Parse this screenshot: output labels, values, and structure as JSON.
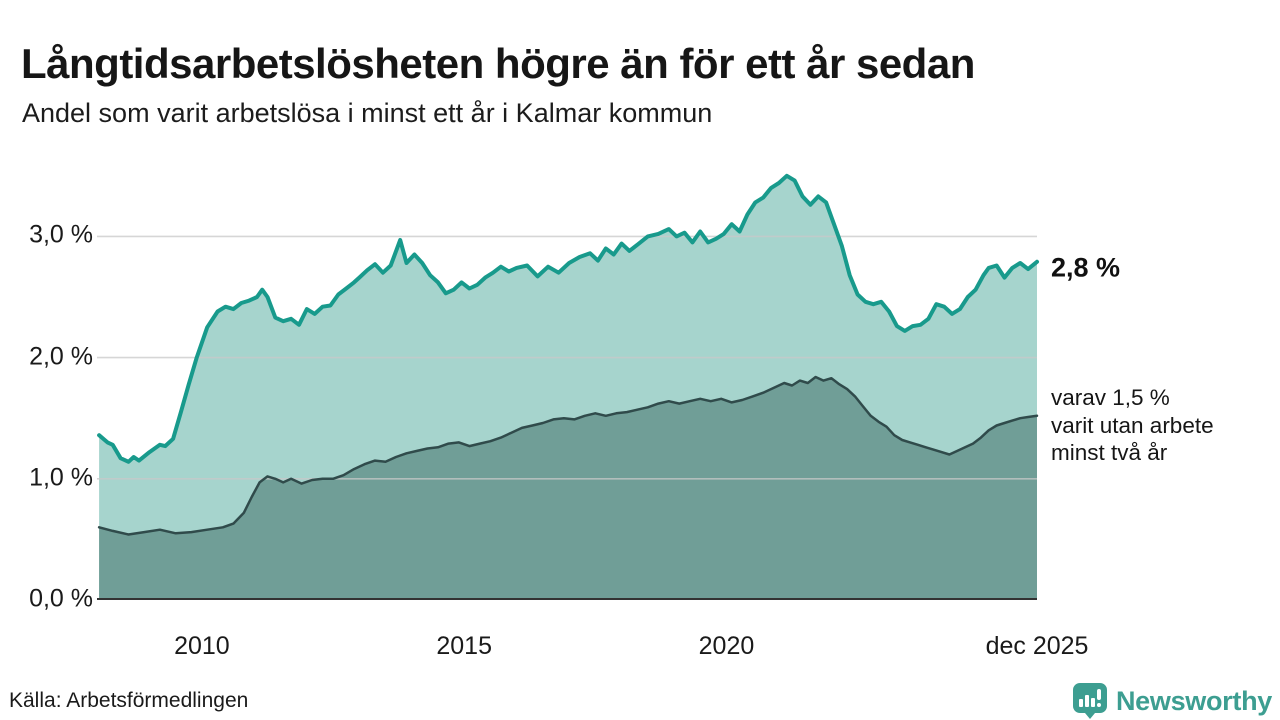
{
  "header": {
    "title": "Långtidsarbetslösheten högre än för ett år sedan",
    "subtitle": "Andel som varit arbetslösa i minst ett år i Kalmar kommun"
  },
  "chart_data": {
    "type": "area",
    "title": "Långtidsarbetslösheten högre än för ett år sedan",
    "subtitle": "Andel som varit arbetslösa i minst ett år i Kalmar kommun",
    "xlabel": "",
    "ylabel": "",
    "grid": true,
    "legend_position": "annotations-right",
    "x_domain": [
      2008.0,
      2025.92
    ],
    "ylim": [
      0,
      3.63
    ],
    "y_ticks": [
      {
        "value": 0,
        "label": "0,0 %"
      },
      {
        "value": 1,
        "label": "1,0 %"
      },
      {
        "value": 2,
        "label": "2,0 %"
      },
      {
        "value": 3,
        "label": "3,0 %"
      }
    ],
    "x_ticks": [
      {
        "value": 2010,
        "label": "2010"
      },
      {
        "value": 2015,
        "label": "2015"
      },
      {
        "value": 2020,
        "label": "2020"
      },
      {
        "value": 2025.92,
        "label": "dec 2025"
      }
    ],
    "colors": {
      "grid": "#c8c8c8",
      "axis": "#333333",
      "accent_teal": "#189a8c",
      "brand_teal": "#3d9e91"
    },
    "series": [
      {
        "id": "unemployed-one-year",
        "name": "arbetslösa minst ett år",
        "color": "#189a8c",
        "fill": "#a6d4cd",
        "width": 4,
        "points": [
          [
            2008.04,
            1.36
          ],
          [
            2008.2,
            1.3
          ],
          [
            2008.3,
            1.28
          ],
          [
            2008.45,
            1.17
          ],
          [
            2008.6,
            1.14
          ],
          [
            2008.7,
            1.18
          ],
          [
            2008.8,
            1.15
          ],
          [
            2009.0,
            1.22
          ],
          [
            2009.2,
            1.28
          ],
          [
            2009.3,
            1.27
          ],
          [
            2009.45,
            1.33
          ],
          [
            2009.6,
            1.55
          ],
          [
            2009.75,
            1.78
          ],
          [
            2009.9,
            2.0
          ],
          [
            2010.1,
            2.25
          ],
          [
            2010.3,
            2.38
          ],
          [
            2010.45,
            2.42
          ],
          [
            2010.6,
            2.4
          ],
          [
            2010.75,
            2.45
          ],
          [
            2010.9,
            2.47
          ],
          [
            2011.05,
            2.5
          ],
          [
            2011.15,
            2.56
          ],
          [
            2011.25,
            2.5
          ],
          [
            2011.4,
            2.33
          ],
          [
            2011.55,
            2.3
          ],
          [
            2011.7,
            2.32
          ],
          [
            2011.85,
            2.27
          ],
          [
            2012.0,
            2.4
          ],
          [
            2012.15,
            2.36
          ],
          [
            2012.3,
            2.42
          ],
          [
            2012.45,
            2.43
          ],
          [
            2012.6,
            2.52
          ],
          [
            2012.75,
            2.57
          ],
          [
            2012.9,
            2.62
          ],
          [
            2013.0,
            2.66
          ],
          [
            2013.15,
            2.72
          ],
          [
            2013.3,
            2.77
          ],
          [
            2013.45,
            2.7
          ],
          [
            2013.6,
            2.76
          ],
          [
            2013.78,
            2.97
          ],
          [
            2013.9,
            2.78
          ],
          [
            2014.05,
            2.85
          ],
          [
            2014.2,
            2.78
          ],
          [
            2014.35,
            2.68
          ],
          [
            2014.5,
            2.62
          ],
          [
            2014.65,
            2.53
          ],
          [
            2014.8,
            2.56
          ],
          [
            2014.95,
            2.62
          ],
          [
            2015.1,
            2.57
          ],
          [
            2015.25,
            2.6
          ],
          [
            2015.4,
            2.66
          ],
          [
            2015.55,
            2.7
          ],
          [
            2015.7,
            2.75
          ],
          [
            2015.85,
            2.71
          ],
          [
            2016.0,
            2.74
          ],
          [
            2016.2,
            2.76
          ],
          [
            2016.4,
            2.67
          ],
          [
            2016.6,
            2.75
          ],
          [
            2016.8,
            2.7
          ],
          [
            2017.0,
            2.78
          ],
          [
            2017.2,
            2.83
          ],
          [
            2017.4,
            2.86
          ],
          [
            2017.55,
            2.8
          ],
          [
            2017.7,
            2.9
          ],
          [
            2017.85,
            2.85
          ],
          [
            2018.0,
            2.94
          ],
          [
            2018.15,
            2.88
          ],
          [
            2018.3,
            2.93
          ],
          [
            2018.5,
            3.0
          ],
          [
            2018.7,
            3.02
          ],
          [
            2018.9,
            3.06
          ],
          [
            2019.05,
            3.0
          ],
          [
            2019.2,
            3.03
          ],
          [
            2019.35,
            2.95
          ],
          [
            2019.5,
            3.04
          ],
          [
            2019.65,
            2.95
          ],
          [
            2019.8,
            2.98
          ],
          [
            2019.95,
            3.02
          ],
          [
            2020.1,
            3.1
          ],
          [
            2020.25,
            3.04
          ],
          [
            2020.4,
            3.18
          ],
          [
            2020.55,
            3.28
          ],
          [
            2020.7,
            3.32
          ],
          [
            2020.85,
            3.4
          ],
          [
            2021.0,
            3.44
          ],
          [
            2021.15,
            3.5
          ],
          [
            2021.3,
            3.46
          ],
          [
            2021.45,
            3.33
          ],
          [
            2021.6,
            3.26
          ],
          [
            2021.75,
            3.33
          ],
          [
            2021.9,
            3.28
          ],
          [
            2022.05,
            3.1
          ],
          [
            2022.2,
            2.92
          ],
          [
            2022.35,
            2.68
          ],
          [
            2022.5,
            2.52
          ],
          [
            2022.65,
            2.46
          ],
          [
            2022.8,
            2.44
          ],
          [
            2022.95,
            2.46
          ],
          [
            2023.1,
            2.38
          ],
          [
            2023.25,
            2.26
          ],
          [
            2023.4,
            2.22
          ],
          [
            2023.55,
            2.26
          ],
          [
            2023.7,
            2.27
          ],
          [
            2023.85,
            2.32
          ],
          [
            2024.0,
            2.44
          ],
          [
            2024.15,
            2.42
          ],
          [
            2024.3,
            2.36
          ],
          [
            2024.45,
            2.4
          ],
          [
            2024.6,
            2.5
          ],
          [
            2024.75,
            2.56
          ],
          [
            2024.9,
            2.68
          ],
          [
            2025.0,
            2.74
          ],
          [
            2025.15,
            2.76
          ],
          [
            2025.3,
            2.66
          ],
          [
            2025.45,
            2.74
          ],
          [
            2025.6,
            2.78
          ],
          [
            2025.75,
            2.73
          ],
          [
            2025.92,
            2.79
          ]
        ]
      },
      {
        "id": "unemployed-two-years",
        "name": "varav utan arbete minst två år",
        "color": "#304b4b",
        "fill": "#709e97",
        "width": 2.5,
        "points": [
          [
            2008.04,
            0.6
          ],
          [
            2008.3,
            0.57
          ],
          [
            2008.6,
            0.54
          ],
          [
            2008.9,
            0.56
          ],
          [
            2009.2,
            0.58
          ],
          [
            2009.5,
            0.55
          ],
          [
            2009.8,
            0.56
          ],
          [
            2010.1,
            0.58
          ],
          [
            2010.4,
            0.6
          ],
          [
            2010.6,
            0.63
          ],
          [
            2010.8,
            0.72
          ],
          [
            2010.95,
            0.85
          ],
          [
            2011.1,
            0.97
          ],
          [
            2011.25,
            1.02
          ],
          [
            2011.4,
            1.0
          ],
          [
            2011.55,
            0.97
          ],
          [
            2011.7,
            1.0
          ],
          [
            2011.9,
            0.96
          ],
          [
            2012.1,
            0.99
          ],
          [
            2012.3,
            1.0
          ],
          [
            2012.5,
            1.0
          ],
          [
            2012.7,
            1.03
          ],
          [
            2012.9,
            1.08
          ],
          [
            2013.1,
            1.12
          ],
          [
            2013.3,
            1.15
          ],
          [
            2013.5,
            1.14
          ],
          [
            2013.7,
            1.18
          ],
          [
            2013.9,
            1.21
          ],
          [
            2014.1,
            1.23
          ],
          [
            2014.3,
            1.25
          ],
          [
            2014.5,
            1.26
          ],
          [
            2014.7,
            1.29
          ],
          [
            2014.9,
            1.3
          ],
          [
            2015.1,
            1.27
          ],
          [
            2015.3,
            1.29
          ],
          [
            2015.5,
            1.31
          ],
          [
            2015.7,
            1.34
          ],
          [
            2015.9,
            1.38
          ],
          [
            2016.1,
            1.42
          ],
          [
            2016.3,
            1.44
          ],
          [
            2016.5,
            1.46
          ],
          [
            2016.7,
            1.49
          ],
          [
            2016.9,
            1.5
          ],
          [
            2017.1,
            1.49
          ],
          [
            2017.3,
            1.52
          ],
          [
            2017.5,
            1.54
          ],
          [
            2017.7,
            1.52
          ],
          [
            2017.9,
            1.54
          ],
          [
            2018.1,
            1.55
          ],
          [
            2018.3,
            1.57
          ],
          [
            2018.5,
            1.59
          ],
          [
            2018.7,
            1.62
          ],
          [
            2018.9,
            1.64
          ],
          [
            2019.1,
            1.62
          ],
          [
            2019.3,
            1.64
          ],
          [
            2019.5,
            1.66
          ],
          [
            2019.7,
            1.64
          ],
          [
            2019.9,
            1.66
          ],
          [
            2020.1,
            1.63
          ],
          [
            2020.3,
            1.65
          ],
          [
            2020.5,
            1.68
          ],
          [
            2020.7,
            1.71
          ],
          [
            2020.9,
            1.75
          ],
          [
            2021.1,
            1.79
          ],
          [
            2021.25,
            1.77
          ],
          [
            2021.4,
            1.81
          ],
          [
            2021.55,
            1.79
          ],
          [
            2021.7,
            1.84
          ],
          [
            2021.85,
            1.81
          ],
          [
            2022.0,
            1.83
          ],
          [
            2022.15,
            1.78
          ],
          [
            2022.3,
            1.74
          ],
          [
            2022.45,
            1.68
          ],
          [
            2022.6,
            1.6
          ],
          [
            2022.75,
            1.52
          ],
          [
            2022.9,
            1.47
          ],
          [
            2023.05,
            1.43
          ],
          [
            2023.2,
            1.36
          ],
          [
            2023.35,
            1.32
          ],
          [
            2023.5,
            1.3
          ],
          [
            2023.65,
            1.28
          ],
          [
            2023.8,
            1.26
          ],
          [
            2023.95,
            1.24
          ],
          [
            2024.1,
            1.22
          ],
          [
            2024.25,
            1.2
          ],
          [
            2024.4,
            1.23
          ],
          [
            2024.55,
            1.26
          ],
          [
            2024.7,
            1.29
          ],
          [
            2024.85,
            1.34
          ],
          [
            2025.0,
            1.4
          ],
          [
            2025.15,
            1.44
          ],
          [
            2025.3,
            1.46
          ],
          [
            2025.45,
            1.48
          ],
          [
            2025.6,
            1.5
          ],
          [
            2025.75,
            1.51
          ],
          [
            2025.92,
            1.52
          ]
        ]
      }
    ],
    "annotations": [
      {
        "id": "latest-total",
        "text": "2,8 %",
        "x": 2025.92,
        "y": 2.79,
        "bold": true
      },
      {
        "id": "latest-two-years",
        "lines": [
          "varav 1,5 %",
          "varit utan arbete",
          "minst två år"
        ],
        "x": 2025.92,
        "y": 1.52
      }
    ]
  },
  "footer": {
    "source": "Källa: Arbetsförmedlingen",
    "brand": "Newsworthy"
  }
}
